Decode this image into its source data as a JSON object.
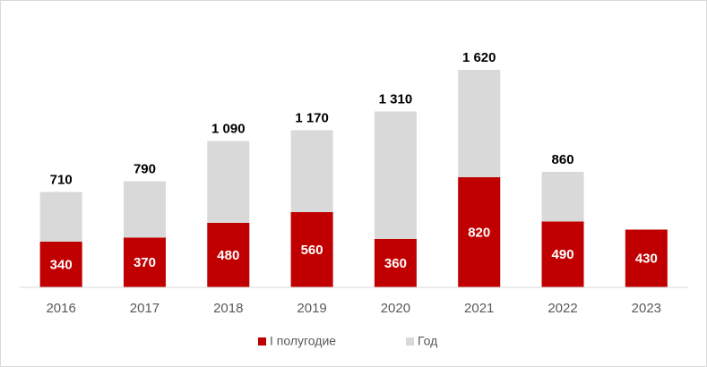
{
  "chart_data": {
    "type": "bar",
    "overlap": true,
    "categories": [
      "2016",
      "2017",
      "2018",
      "2019",
      "2020",
      "2021",
      "2022",
      "2023"
    ],
    "series": [
      {
        "name": "I полугодие",
        "color": "#c00000",
        "values": [
          340,
          370,
          480,
          560,
          360,
          820,
          490,
          430
        ]
      },
      {
        "name": "Год",
        "color": "#d9d9d9",
        "values": [
          710,
          790,
          1090,
          1170,
          1310,
          1620,
          860,
          null
        ],
        "value_labels": [
          "710",
          "790",
          "1 090",
          "1 170",
          "1 310",
          "1 620",
          "860",
          null
        ]
      }
    ],
    "ylim": [
      0,
      1800
    ]
  }
}
